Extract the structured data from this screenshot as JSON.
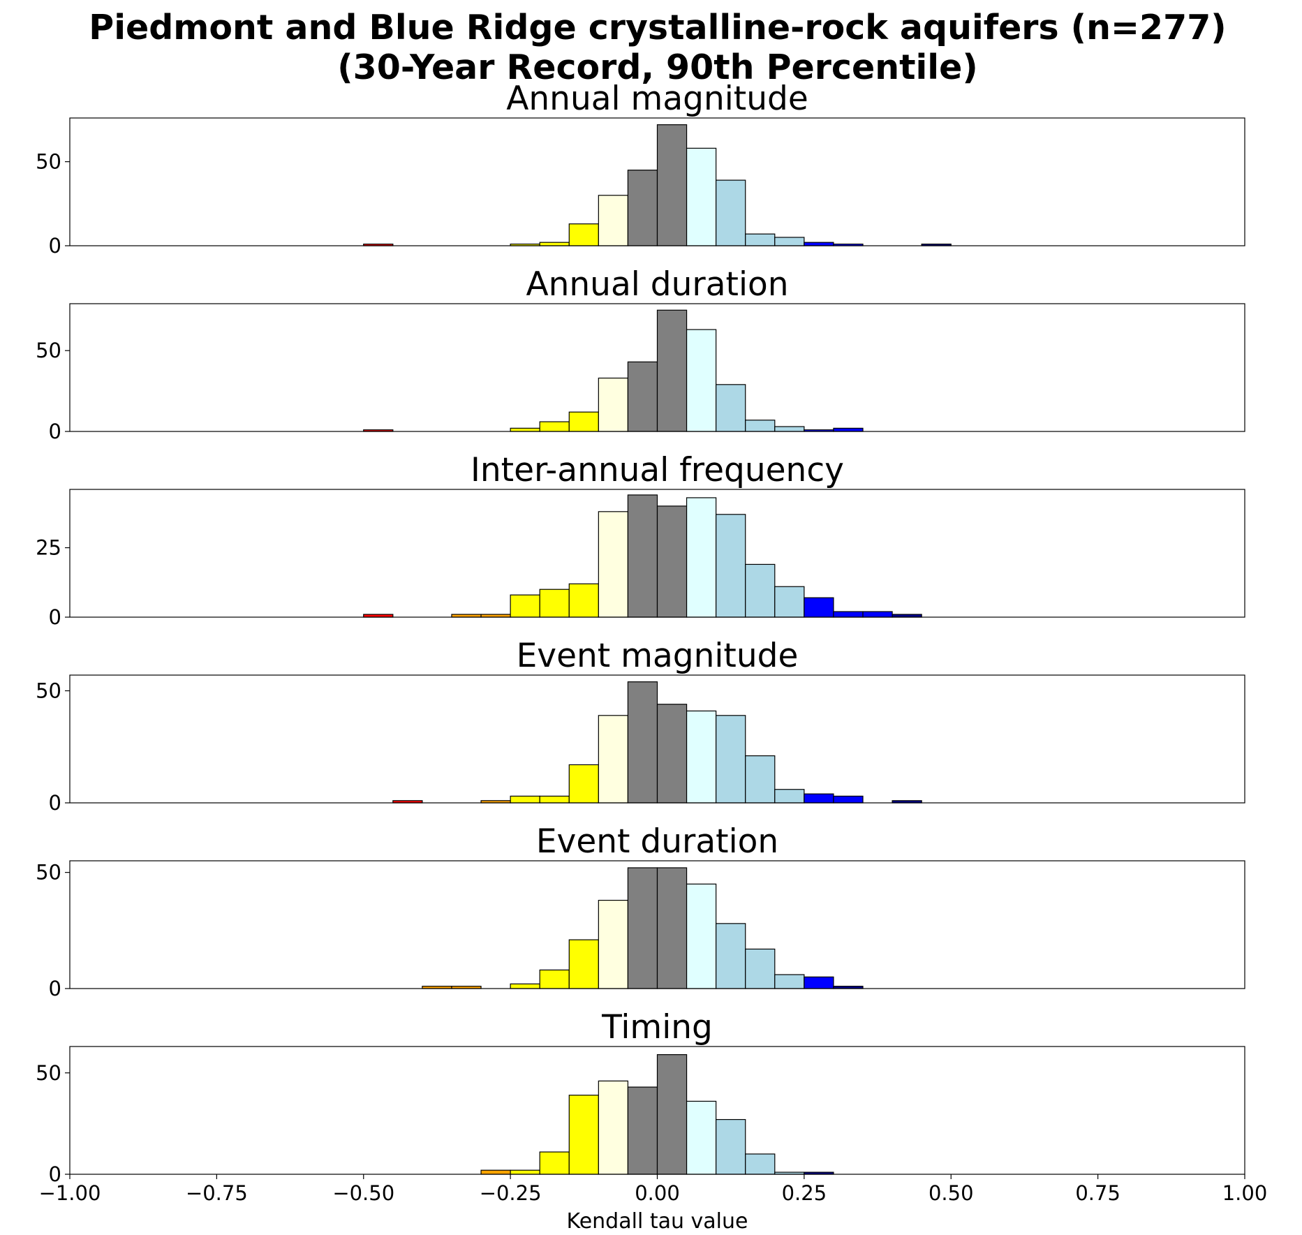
{
  "figure": {
    "title_line1": "Piedmont and Blue Ridge crystalline-rock aquifers (n=277)",
    "title_line2": "(30-Year Record, 90th Percentile)"
  },
  "chart_data": [
    {
      "type": "bar",
      "title": "Annual magnitude",
      "xlabel": "",
      "ylabel": "",
      "xlim": [
        -1.0,
        1.0
      ],
      "ylim": [
        0,
        76
      ],
      "yticks": [
        0,
        50
      ],
      "xticks": [],
      "bin_width": 0.05,
      "bars": [
        {
          "x0": -0.5,
          "x1": -0.45,
          "value": 1,
          "color": "#FF0000"
        },
        {
          "x0": -0.25,
          "x1": -0.2,
          "value": 1,
          "color": "#FFFF00"
        },
        {
          "x0": -0.2,
          "x1": -0.15,
          "value": 2,
          "color": "#FFFF00"
        },
        {
          "x0": -0.15,
          "x1": -0.1,
          "value": 13,
          "color": "#FFFF00"
        },
        {
          "x0": -0.1,
          "x1": -0.05,
          "value": 30,
          "color": "#FFFFE0"
        },
        {
          "x0": -0.05,
          "x1": 0.0,
          "value": 45,
          "color": "#808080"
        },
        {
          "x0": 0.0,
          "x1": 0.05,
          "value": 72,
          "color": "#808080"
        },
        {
          "x0": 0.05,
          "x1": 0.1,
          "value": 58,
          "color": "#E0FFFF"
        },
        {
          "x0": 0.1,
          "x1": 0.15,
          "value": 39,
          "color": "#ADD8E6"
        },
        {
          "x0": 0.15,
          "x1": 0.2,
          "value": 7,
          "color": "#ADD8E6"
        },
        {
          "x0": 0.2,
          "x1": 0.25,
          "value": 5,
          "color": "#ADD8E6"
        },
        {
          "x0": 0.25,
          "x1": 0.3,
          "value": 2,
          "color": "#0000FF"
        },
        {
          "x0": 0.3,
          "x1": 0.35,
          "value": 1,
          "color": "#0000FF"
        },
        {
          "x0": 0.45,
          "x1": 0.5,
          "value": 1,
          "color": "#00008B"
        }
      ]
    },
    {
      "type": "bar",
      "title": "Annual duration",
      "xlabel": "",
      "ylabel": "",
      "xlim": [
        -1.0,
        1.0
      ],
      "ylim": [
        0,
        79
      ],
      "yticks": [
        0,
        50
      ],
      "xticks": [],
      "bin_width": 0.05,
      "bars": [
        {
          "x0": -0.5,
          "x1": -0.45,
          "value": 1,
          "color": "#FF0000"
        },
        {
          "x0": -0.25,
          "x1": -0.2,
          "value": 2,
          "color": "#FFFF00"
        },
        {
          "x0": -0.2,
          "x1": -0.15,
          "value": 6,
          "color": "#FFFF00"
        },
        {
          "x0": -0.15,
          "x1": -0.1,
          "value": 12,
          "color": "#FFFF00"
        },
        {
          "x0": -0.1,
          "x1": -0.05,
          "value": 33,
          "color": "#FFFFE0"
        },
        {
          "x0": -0.05,
          "x1": 0.0,
          "value": 43,
          "color": "#808080"
        },
        {
          "x0": 0.0,
          "x1": 0.05,
          "value": 75,
          "color": "#808080"
        },
        {
          "x0": 0.05,
          "x1": 0.1,
          "value": 63,
          "color": "#E0FFFF"
        },
        {
          "x0": 0.1,
          "x1": 0.15,
          "value": 29,
          "color": "#ADD8E6"
        },
        {
          "x0": 0.15,
          "x1": 0.2,
          "value": 7,
          "color": "#ADD8E6"
        },
        {
          "x0": 0.2,
          "x1": 0.25,
          "value": 3,
          "color": "#ADD8E6"
        },
        {
          "x0": 0.25,
          "x1": 0.3,
          "value": 1,
          "color": "#0000FF"
        },
        {
          "x0": 0.3,
          "x1": 0.35,
          "value": 2,
          "color": "#0000FF"
        }
      ]
    },
    {
      "type": "bar",
      "title": "Inter-annual frequency",
      "xlabel": "",
      "ylabel": "",
      "xlim": [
        -1.0,
        1.0
      ],
      "ylim": [
        0,
        46
      ],
      "yticks": [
        0,
        25
      ],
      "xticks": [],
      "bin_width": 0.05,
      "bars": [
        {
          "x0": -0.5,
          "x1": -0.45,
          "value": 1,
          "color": "#FF0000"
        },
        {
          "x0": -0.35,
          "x1": -0.3,
          "value": 1,
          "color": "#FFA500"
        },
        {
          "x0": -0.3,
          "x1": -0.25,
          "value": 1,
          "color": "#FFA500"
        },
        {
          "x0": -0.25,
          "x1": -0.2,
          "value": 8,
          "color": "#FFFF00"
        },
        {
          "x0": -0.2,
          "x1": -0.15,
          "value": 10,
          "color": "#FFFF00"
        },
        {
          "x0": -0.15,
          "x1": -0.1,
          "value": 12,
          "color": "#FFFF00"
        },
        {
          "x0": -0.1,
          "x1": -0.05,
          "value": 38,
          "color": "#FFFFE0"
        },
        {
          "x0": -0.05,
          "x1": 0.0,
          "value": 44,
          "color": "#808080"
        },
        {
          "x0": 0.0,
          "x1": 0.05,
          "value": 40,
          "color": "#808080"
        },
        {
          "x0": 0.05,
          "x1": 0.1,
          "value": 43,
          "color": "#E0FFFF"
        },
        {
          "x0": 0.1,
          "x1": 0.15,
          "value": 37,
          "color": "#ADD8E6"
        },
        {
          "x0": 0.15,
          "x1": 0.2,
          "value": 19,
          "color": "#ADD8E6"
        },
        {
          "x0": 0.2,
          "x1": 0.25,
          "value": 11,
          "color": "#ADD8E6"
        },
        {
          "x0": 0.25,
          "x1": 0.3,
          "value": 7,
          "color": "#0000FF"
        },
        {
          "x0": 0.3,
          "x1": 0.35,
          "value": 2,
          "color": "#0000FF"
        },
        {
          "x0": 0.35,
          "x1": 0.4,
          "value": 2,
          "color": "#0000FF"
        },
        {
          "x0": 0.4,
          "x1": 0.45,
          "value": 1,
          "color": "#00008B"
        }
      ]
    },
    {
      "type": "bar",
      "title": "Event magnitude",
      "xlabel": "",
      "ylabel": "",
      "xlim": [
        -1.0,
        1.0
      ],
      "ylim": [
        0,
        57
      ],
      "yticks": [
        0,
        50
      ],
      "xticks": [],
      "bin_width": 0.05,
      "bars": [
        {
          "x0": -0.45,
          "x1": -0.4,
          "value": 1,
          "color": "#FF0000"
        },
        {
          "x0": -0.3,
          "x1": -0.25,
          "value": 1,
          "color": "#FFA500"
        },
        {
          "x0": -0.25,
          "x1": -0.2,
          "value": 3,
          "color": "#FFFF00"
        },
        {
          "x0": -0.2,
          "x1": -0.15,
          "value": 3,
          "color": "#FFFF00"
        },
        {
          "x0": -0.15,
          "x1": -0.1,
          "value": 17,
          "color": "#FFFF00"
        },
        {
          "x0": -0.1,
          "x1": -0.05,
          "value": 39,
          "color": "#FFFFE0"
        },
        {
          "x0": -0.05,
          "x1": 0.0,
          "value": 54,
          "color": "#808080"
        },
        {
          "x0": 0.0,
          "x1": 0.05,
          "value": 44,
          "color": "#808080"
        },
        {
          "x0": 0.05,
          "x1": 0.1,
          "value": 41,
          "color": "#E0FFFF"
        },
        {
          "x0": 0.1,
          "x1": 0.15,
          "value": 39,
          "color": "#ADD8E6"
        },
        {
          "x0": 0.15,
          "x1": 0.2,
          "value": 21,
          "color": "#ADD8E6"
        },
        {
          "x0": 0.2,
          "x1": 0.25,
          "value": 6,
          "color": "#ADD8E6"
        },
        {
          "x0": 0.25,
          "x1": 0.3,
          "value": 4,
          "color": "#0000FF"
        },
        {
          "x0": 0.3,
          "x1": 0.35,
          "value": 3,
          "color": "#0000FF"
        },
        {
          "x0": 0.4,
          "x1": 0.45,
          "value": 1,
          "color": "#00008B"
        }
      ]
    },
    {
      "type": "bar",
      "title": "Event duration",
      "xlabel": "",
      "ylabel": "",
      "xlim": [
        -1.0,
        1.0
      ],
      "ylim": [
        0,
        55
      ],
      "yticks": [
        0,
        50
      ],
      "xticks": [],
      "bin_width": 0.05,
      "bars": [
        {
          "x0": -0.4,
          "x1": -0.35,
          "value": 1,
          "color": "#FFA500"
        },
        {
          "x0": -0.35,
          "x1": -0.3,
          "value": 1,
          "color": "#FFA500"
        },
        {
          "x0": -0.25,
          "x1": -0.2,
          "value": 2,
          "color": "#FFFF00"
        },
        {
          "x0": -0.2,
          "x1": -0.15,
          "value": 8,
          "color": "#FFFF00"
        },
        {
          "x0": -0.15,
          "x1": -0.1,
          "value": 21,
          "color": "#FFFF00"
        },
        {
          "x0": -0.1,
          "x1": -0.05,
          "value": 38,
          "color": "#FFFFE0"
        },
        {
          "x0": -0.05,
          "x1": 0.0,
          "value": 52,
          "color": "#808080"
        },
        {
          "x0": 0.0,
          "x1": 0.05,
          "value": 52,
          "color": "#808080"
        },
        {
          "x0": 0.05,
          "x1": 0.1,
          "value": 45,
          "color": "#E0FFFF"
        },
        {
          "x0": 0.1,
          "x1": 0.15,
          "value": 28,
          "color": "#ADD8E6"
        },
        {
          "x0": 0.15,
          "x1": 0.2,
          "value": 17,
          "color": "#ADD8E6"
        },
        {
          "x0": 0.2,
          "x1": 0.25,
          "value": 6,
          "color": "#ADD8E6"
        },
        {
          "x0": 0.25,
          "x1": 0.3,
          "value": 5,
          "color": "#0000FF"
        },
        {
          "x0": 0.3,
          "x1": 0.35,
          "value": 1,
          "color": "#00008B"
        }
      ]
    },
    {
      "type": "bar",
      "title": "Timing",
      "xlabel": "Kendall tau value",
      "ylabel": "",
      "xlim": [
        -1.0,
        1.0
      ],
      "ylim": [
        0,
        63
      ],
      "yticks": [
        0,
        50
      ],
      "xticks": [
        "−1.00",
        "−0.75",
        "−0.50",
        "−0.25",
        "0.00",
        "0.25",
        "0.50",
        "0.75",
        "1.00"
      ],
      "bin_width": 0.05,
      "bars": [
        {
          "x0": -0.3,
          "x1": -0.25,
          "value": 2,
          "color": "#FFA500"
        },
        {
          "x0": -0.25,
          "x1": -0.2,
          "value": 2,
          "color": "#FFFF00"
        },
        {
          "x0": -0.2,
          "x1": -0.15,
          "value": 11,
          "color": "#FFFF00"
        },
        {
          "x0": -0.15,
          "x1": -0.1,
          "value": 39,
          "color": "#FFFF00"
        },
        {
          "x0": -0.1,
          "x1": -0.05,
          "value": 46,
          "color": "#FFFFE0"
        },
        {
          "x0": -0.05,
          "x1": 0.0,
          "value": 43,
          "color": "#808080"
        },
        {
          "x0": 0.0,
          "x1": 0.05,
          "value": 59,
          "color": "#808080"
        },
        {
          "x0": 0.05,
          "x1": 0.1,
          "value": 36,
          "color": "#E0FFFF"
        },
        {
          "x0": 0.1,
          "x1": 0.15,
          "value": 27,
          "color": "#ADD8E6"
        },
        {
          "x0": 0.15,
          "x1": 0.2,
          "value": 10,
          "color": "#ADD8E6"
        },
        {
          "x0": 0.2,
          "x1": 0.25,
          "value": 1,
          "color": "#ADD8E6"
        },
        {
          "x0": 0.25,
          "x1": 0.3,
          "value": 1,
          "color": "#00008B"
        }
      ]
    }
  ]
}
